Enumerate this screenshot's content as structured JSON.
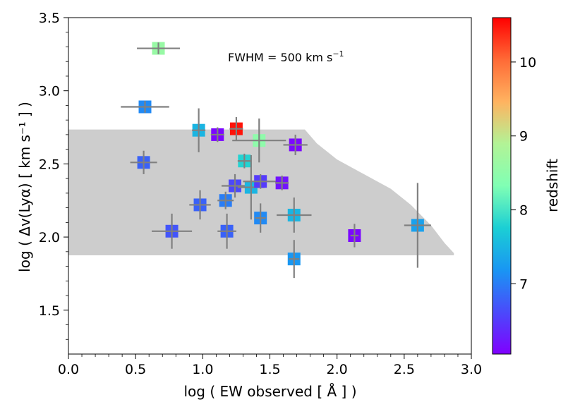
{
  "chart_data": {
    "type": "scatter",
    "xlabel": "log ( EW observed [ Å ] )",
    "ylabel": "log ( Δv(Lyα) [ km s⁻¹ ] )",
    "annotation": "FWHM = 500 km s",
    "annotation_sup": "−1",
    "xlim": [
      0.0,
      3.0
    ],
    "ylim": [
      1.2,
      3.5
    ],
    "xticks": [
      0.0,
      0.5,
      1.0,
      1.5,
      2.0,
      2.5,
      3.0
    ],
    "xtick_labels": [
      "0.0",
      "0.5",
      "1.0",
      "1.5",
      "2.0",
      "2.5",
      "3.0"
    ],
    "yticks": [
      1.5,
      2.0,
      2.5,
      3.0,
      3.5
    ],
    "ytick_labels": [
      "1.5",
      "2.0",
      "2.5",
      "3.0",
      "3.5"
    ],
    "colorbar": {
      "label": "redshift",
      "range": [
        6.05,
        10.6
      ],
      "ticks": [
        7,
        8,
        9,
        10
      ],
      "tick_labels": [
        "7",
        "8",
        "9",
        "10"
      ]
    },
    "region": {
      "description": "grey allowed region",
      "x_start": 0.0,
      "y_bottom": 1.875,
      "y_top": 2.735,
      "boundary": [
        [
          0.0,
          2.735
        ],
        [
          1.76,
          2.735
        ],
        [
          1.85,
          2.64
        ],
        [
          2.0,
          2.53
        ],
        [
          2.2,
          2.43
        ],
        [
          2.4,
          2.33
        ],
        [
          2.55,
          2.22
        ],
        [
          2.7,
          2.08
        ],
        [
          2.8,
          1.96
        ],
        [
          2.87,
          1.89
        ]
      ]
    },
    "points": [
      {
        "x": 0.67,
        "y": 3.29,
        "xerr": 0.16,
        "yerr": 0.04,
        "z": 8.6
      },
      {
        "x": 0.57,
        "y": 2.89,
        "xerr": 0.18,
        "yerr": 0.04,
        "z": 7.1
      },
      {
        "x": 0.56,
        "y": 2.51,
        "xerr": 0.1,
        "yerr": 0.08,
        "z": 6.8
      },
      {
        "x": 0.97,
        "y": 2.73,
        "xerr": 0.05,
        "yerr": 0.15,
        "z": 7.5
      },
      {
        "x": 1.11,
        "y": 2.7,
        "xerr": 0.05,
        "yerr": 0.05,
        "z": 6.1
      },
      {
        "x": 1.25,
        "y": 2.74,
        "xerr": 0.05,
        "yerr": 0.08,
        "z": 10.5
      },
      {
        "x": 1.42,
        "y": 2.66,
        "xerr": 0.2,
        "yerr": 0.15,
        "z": 8.5
      },
      {
        "x": 1.69,
        "y": 2.63,
        "xerr": 0.09,
        "yerr": 0.07,
        "z": 6.1
      },
      {
        "x": 1.31,
        "y": 2.52,
        "xerr": 0.05,
        "yerr": 0.05,
        "z": 7.8
      },
      {
        "x": 1.24,
        "y": 2.35,
        "xerr": 0.1,
        "yerr": 0.08,
        "z": 6.6
      },
      {
        "x": 1.36,
        "y": 2.34,
        "xerr": 0.1,
        "yerr": 0.22,
        "z": 7.5
      },
      {
        "x": 1.43,
        "y": 2.38,
        "xerr": 0.13,
        "yerr": 0.05,
        "z": 6.5
      },
      {
        "x": 1.59,
        "y": 2.37,
        "xerr": 0.05,
        "yerr": 0.05,
        "z": 6.2
      },
      {
        "x": 1.17,
        "y": 2.25,
        "xerr": 0.06,
        "yerr": 0.06,
        "z": 7.0
      },
      {
        "x": 0.98,
        "y": 2.22,
        "xerr": 0.08,
        "yerr": 0.1,
        "z": 6.8
      },
      {
        "x": 0.77,
        "y": 2.04,
        "xerr": 0.15,
        "yerr": 0.12,
        "z": 6.7
      },
      {
        "x": 1.18,
        "y": 2.04,
        "xerr": 0.07,
        "yerr": 0.12,
        "z": 6.8
      },
      {
        "x": 1.43,
        "y": 2.13,
        "xerr": 0.04,
        "yerr": 0.1,
        "z": 7.1
      },
      {
        "x": 1.68,
        "y": 2.15,
        "xerr": 0.13,
        "yerr": 0.12,
        "z": 7.5
      },
      {
        "x": 1.68,
        "y": 1.85,
        "xerr": 0.04,
        "yerr": 0.13,
        "z": 7.2
      },
      {
        "x": 2.13,
        "y": 2.01,
        "xerr": 0.03,
        "yerr": 0.08,
        "z": 6.1
      },
      {
        "x": 2.6,
        "y": 2.08,
        "xerr": 0.1,
        "yerr": 0.29,
        "z": 7.3
      }
    ]
  }
}
